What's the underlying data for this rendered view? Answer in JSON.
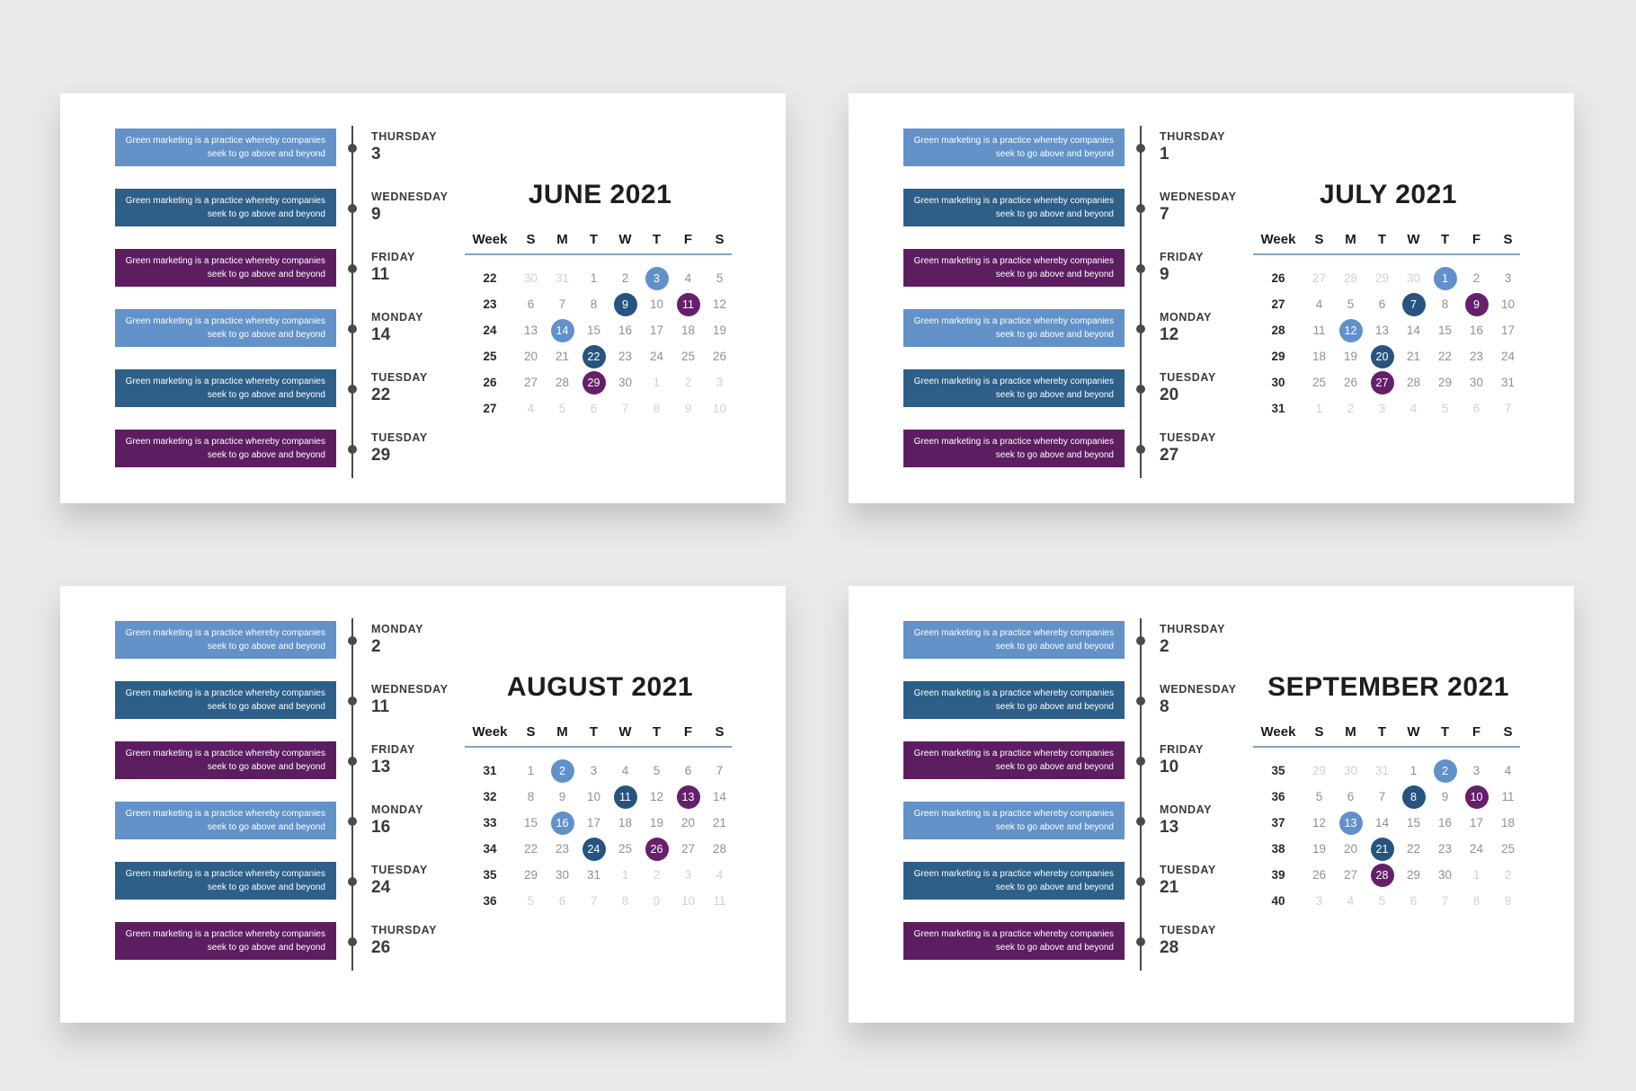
{
  "event_text": "Green marketing is a practice whereby companies seek to go above and beyond",
  "event_text_lines": [
    "Green marketing is a practice whereby companies",
    "seek to go above and beyond"
  ],
  "weekday_headers": [
    "Week",
    "S",
    "M",
    "T",
    "W",
    "T",
    "F",
    "S"
  ],
  "colors": {
    "light-blue": {
      "box": "#6292c8",
      "circle": "#6191cb"
    },
    "dark-blue": {
      "box": "#2d5f88",
      "circle": "#27547f"
    },
    "purple": {
      "box": "#5c1d61",
      "circle": "#651f6b"
    }
  },
  "ui_colors": {
    "page_bg": "#e9e9e9",
    "card_bg": "#ffffff",
    "timeline": "#4a4a4a",
    "header_underline": "#7da6c5",
    "title_text": "#1d1d1b",
    "week_number_text": "#26292d",
    "day_number_text": "#8a9299",
    "out_of_month_text": "#cdd2d7",
    "circle_text": "#ffffff"
  },
  "months": [
    {
      "title": "JUNE 2021",
      "position": "top-left",
      "events": [
        {
          "day": "THURSDAY",
          "date": "3",
          "color": "light-blue"
        },
        {
          "day": "WEDNESDAY",
          "date": "9",
          "color": "dark-blue"
        },
        {
          "day": "FRIDAY",
          "date": "11",
          "color": "purple"
        },
        {
          "day": "MONDAY",
          "date": "14",
          "color": "light-blue"
        },
        {
          "day": "TUESDAY",
          "date": "22",
          "color": "dark-blue"
        },
        {
          "day": "TUESDAY",
          "date": "29",
          "color": "purple"
        }
      ],
      "weeks": [
        {
          "num": "22",
          "days": [
            {
              "d": "30",
              "out": true
            },
            {
              "d": "31",
              "out": true
            },
            {
              "d": "1"
            },
            {
              "d": "2"
            },
            {
              "d": "3",
              "hl": "light-blue"
            },
            {
              "d": "4"
            },
            {
              "d": "5"
            }
          ]
        },
        {
          "num": "23",
          "days": [
            {
              "d": "6"
            },
            {
              "d": "7"
            },
            {
              "d": "8"
            },
            {
              "d": "9",
              "hl": "dark-blue"
            },
            {
              "d": "10"
            },
            {
              "d": "11",
              "hl": "purple"
            },
            {
              "d": "12"
            }
          ]
        },
        {
          "num": "24",
          "days": [
            {
              "d": "13"
            },
            {
              "d": "14",
              "hl": "light-blue"
            },
            {
              "d": "15"
            },
            {
              "d": "16"
            },
            {
              "d": "17"
            },
            {
              "d": "18"
            },
            {
              "d": "19"
            }
          ]
        },
        {
          "num": "25",
          "days": [
            {
              "d": "20"
            },
            {
              "d": "21"
            },
            {
              "d": "22",
              "hl": "dark-blue"
            },
            {
              "d": "23"
            },
            {
              "d": "24"
            },
            {
              "d": "25"
            },
            {
              "d": "26"
            }
          ]
        },
        {
          "num": "26",
          "days": [
            {
              "d": "27"
            },
            {
              "d": "28"
            },
            {
              "d": "29",
              "hl": "purple"
            },
            {
              "d": "30"
            },
            {
              "d": "1",
              "out": true
            },
            {
              "d": "2",
              "out": true
            },
            {
              "d": "3",
              "out": true
            }
          ]
        },
        {
          "num": "27",
          "days": [
            {
              "d": "4",
              "out": true
            },
            {
              "d": "5",
              "out": true
            },
            {
              "d": "6",
              "out": true
            },
            {
              "d": "7",
              "out": true
            },
            {
              "d": "8",
              "out": true
            },
            {
              "d": "9",
              "out": true
            },
            {
              "d": "10",
              "out": true
            }
          ]
        }
      ]
    },
    {
      "title": "JULY 2021",
      "position": "top-right",
      "events": [
        {
          "day": "THURSDAY",
          "date": "1",
          "color": "light-blue"
        },
        {
          "day": "WEDNESDAY",
          "date": "7",
          "color": "dark-blue"
        },
        {
          "day": "FRIDAY",
          "date": "9",
          "color": "purple"
        },
        {
          "day": "MONDAY",
          "date": "12",
          "color": "light-blue"
        },
        {
          "day": "TUESDAY",
          "date": "20",
          "color": "dark-blue"
        },
        {
          "day": "TUESDAY",
          "date": "27",
          "color": "purple"
        }
      ],
      "weeks": [
        {
          "num": "26",
          "days": [
            {
              "d": "27",
              "out": true
            },
            {
              "d": "28",
              "out": true
            },
            {
              "d": "29",
              "out": true
            },
            {
              "d": "30",
              "out": true
            },
            {
              "d": "1",
              "hl": "light-blue"
            },
            {
              "d": "2"
            },
            {
              "d": "3"
            }
          ]
        },
        {
          "num": "27",
          "days": [
            {
              "d": "4"
            },
            {
              "d": "5"
            },
            {
              "d": "6"
            },
            {
              "d": "7",
              "hl": "dark-blue"
            },
            {
              "d": "8"
            },
            {
              "d": "9",
              "hl": "purple"
            },
            {
              "d": "10"
            }
          ]
        },
        {
          "num": "28",
          "days": [
            {
              "d": "11"
            },
            {
              "d": "12",
              "hl": "light-blue"
            },
            {
              "d": "13"
            },
            {
              "d": "14"
            },
            {
              "d": "15"
            },
            {
              "d": "16"
            },
            {
              "d": "17"
            }
          ]
        },
        {
          "num": "29",
          "days": [
            {
              "d": "18"
            },
            {
              "d": "19"
            },
            {
              "d": "20",
              "hl": "dark-blue"
            },
            {
              "d": "21"
            },
            {
              "d": "22"
            },
            {
              "d": "23"
            },
            {
              "d": "24"
            }
          ]
        },
        {
          "num": "30",
          "days": [
            {
              "d": "25"
            },
            {
              "d": "26"
            },
            {
              "d": "27",
              "hl": "purple"
            },
            {
              "d": "28"
            },
            {
              "d": "29"
            },
            {
              "d": "30"
            },
            {
              "d": "31"
            }
          ]
        },
        {
          "num": "31",
          "days": [
            {
              "d": "1",
              "out": true
            },
            {
              "d": "2",
              "out": true
            },
            {
              "d": "3",
              "out": true
            },
            {
              "d": "4",
              "out": true
            },
            {
              "d": "5",
              "out": true
            },
            {
              "d": "6",
              "out": true
            },
            {
              "d": "7",
              "out": true
            }
          ]
        }
      ]
    },
    {
      "title": "AUGUST 2021",
      "position": "bottom-left",
      "events": [
        {
          "day": "MONDAY",
          "date": "2",
          "color": "light-blue"
        },
        {
          "day": "WEDNESDAY",
          "date": "11",
          "color": "dark-blue"
        },
        {
          "day": "FRIDAY",
          "date": "13",
          "color": "purple"
        },
        {
          "day": "MONDAY",
          "date": "16",
          "color": "light-blue"
        },
        {
          "day": "TUESDAY",
          "date": "24",
          "color": "dark-blue"
        },
        {
          "day": "THURSDAY",
          "date": "26",
          "color": "purple"
        }
      ],
      "weeks": [
        {
          "num": "31",
          "days": [
            {
              "d": "1"
            },
            {
              "d": "2",
              "hl": "light-blue"
            },
            {
              "d": "3"
            },
            {
              "d": "4"
            },
            {
              "d": "5"
            },
            {
              "d": "6"
            },
            {
              "d": "7"
            }
          ]
        },
        {
          "num": "32",
          "days": [
            {
              "d": "8"
            },
            {
              "d": "9"
            },
            {
              "d": "10"
            },
            {
              "d": "11",
              "hl": "dark-blue"
            },
            {
              "d": "12"
            },
            {
              "d": "13",
              "hl": "purple"
            },
            {
              "d": "14"
            }
          ]
        },
        {
          "num": "33",
          "days": [
            {
              "d": "15"
            },
            {
              "d": "16",
              "hl": "light-blue"
            },
            {
              "d": "17"
            },
            {
              "d": "18"
            },
            {
              "d": "19"
            },
            {
              "d": "20"
            },
            {
              "d": "21"
            }
          ]
        },
        {
          "num": "34",
          "days": [
            {
              "d": "22"
            },
            {
              "d": "23"
            },
            {
              "d": "24",
              "hl": "dark-blue"
            },
            {
              "d": "25"
            },
            {
              "d": "26",
              "hl": "purple"
            },
            {
              "d": "27"
            },
            {
              "d": "28"
            }
          ]
        },
        {
          "num": "35",
          "days": [
            {
              "d": "29"
            },
            {
              "d": "30"
            },
            {
              "d": "31"
            },
            {
              "d": "1",
              "out": true
            },
            {
              "d": "2",
              "out": true
            },
            {
              "d": "3",
              "out": true
            },
            {
              "d": "4",
              "out": true
            }
          ]
        },
        {
          "num": "36",
          "days": [
            {
              "d": "5",
              "out": true
            },
            {
              "d": "6",
              "out": true
            },
            {
              "d": "7",
              "out": true
            },
            {
              "d": "8",
              "out": true
            },
            {
              "d": "9",
              "out": true
            },
            {
              "d": "10",
              "out": true
            },
            {
              "d": "11",
              "out": true
            }
          ]
        }
      ]
    },
    {
      "title": "SEPTEMBER 2021",
      "position": "bottom-right",
      "events": [
        {
          "day": "THURSDAY",
          "date": "2",
          "color": "light-blue"
        },
        {
          "day": "WEDNESDAY",
          "date": "8",
          "color": "dark-blue"
        },
        {
          "day": "FRIDAY",
          "date": "10",
          "color": "purple"
        },
        {
          "day": "MONDAY",
          "date": "13",
          "color": "light-blue"
        },
        {
          "day": "TUESDAY",
          "date": "21",
          "color": "dark-blue"
        },
        {
          "day": "TUESDAY",
          "date": "28",
          "color": "purple"
        }
      ],
      "weeks": [
        {
          "num": "35",
          "days": [
            {
              "d": "29",
              "out": true
            },
            {
              "d": "30",
              "out": true
            },
            {
              "d": "31",
              "out": true
            },
            {
              "d": "1"
            },
            {
              "d": "2",
              "hl": "light-blue"
            },
            {
              "d": "3"
            },
            {
              "d": "4"
            }
          ]
        },
        {
          "num": "36",
          "days": [
            {
              "d": "5"
            },
            {
              "d": "6"
            },
            {
              "d": "7"
            },
            {
              "d": "8",
              "hl": "dark-blue"
            },
            {
              "d": "9"
            },
            {
              "d": "10",
              "hl": "purple"
            },
            {
              "d": "11"
            }
          ]
        },
        {
          "num": "37",
          "days": [
            {
              "d": "12"
            },
            {
              "d": "13",
              "hl": "light-blue"
            },
            {
              "d": "14"
            },
            {
              "d": "15"
            },
            {
              "d": "16"
            },
            {
              "d": "17"
            },
            {
              "d": "18"
            }
          ]
        },
        {
          "num": "38",
          "days": [
            {
              "d": "19"
            },
            {
              "d": "20"
            },
            {
              "d": "21",
              "hl": "dark-blue"
            },
            {
              "d": "22"
            },
            {
              "d": "23"
            },
            {
              "d": "24"
            },
            {
              "d": "25"
            }
          ]
        },
        {
          "num": "39",
          "days": [
            {
              "d": "26"
            },
            {
              "d": "27"
            },
            {
              "d": "28",
              "hl": "purple"
            },
            {
              "d": "29"
            },
            {
              "d": "30"
            },
            {
              "d": "1",
              "out": true
            },
            {
              "d": "2",
              "out": true
            }
          ]
        },
        {
          "num": "40",
          "days": [
            {
              "d": "3",
              "out": true
            },
            {
              "d": "4",
              "out": true
            },
            {
              "d": "5",
              "out": true
            },
            {
              "d": "6",
              "out": true
            },
            {
              "d": "7",
              "out": true
            },
            {
              "d": "8",
              "out": true
            },
            {
              "d": "9",
              "out": true
            }
          ]
        }
      ]
    }
  ]
}
